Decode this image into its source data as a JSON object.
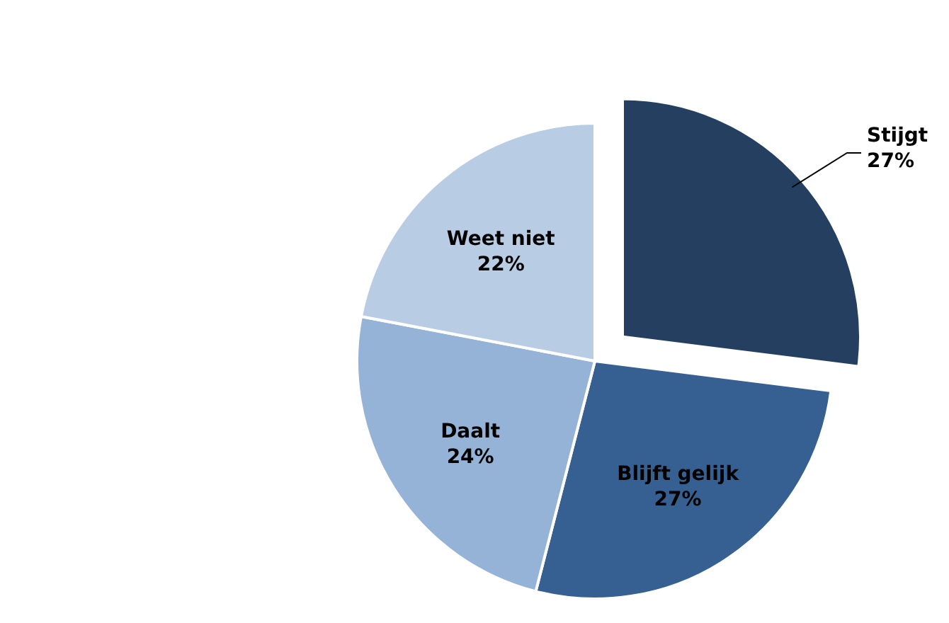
{
  "chart_data": {
    "type": "pie",
    "categories": [
      "Stijgt",
      "Blijft gelijk",
      "Daalt",
      "Weet niet"
    ],
    "values": [
      27,
      27,
      24,
      22
    ],
    "colors": [
      "#243f60",
      "#366092",
      "#95b3d7",
      "#b8cce4"
    ],
    "value_labels": [
      "27%",
      "27%",
      "24%",
      "22%"
    ]
  }
}
